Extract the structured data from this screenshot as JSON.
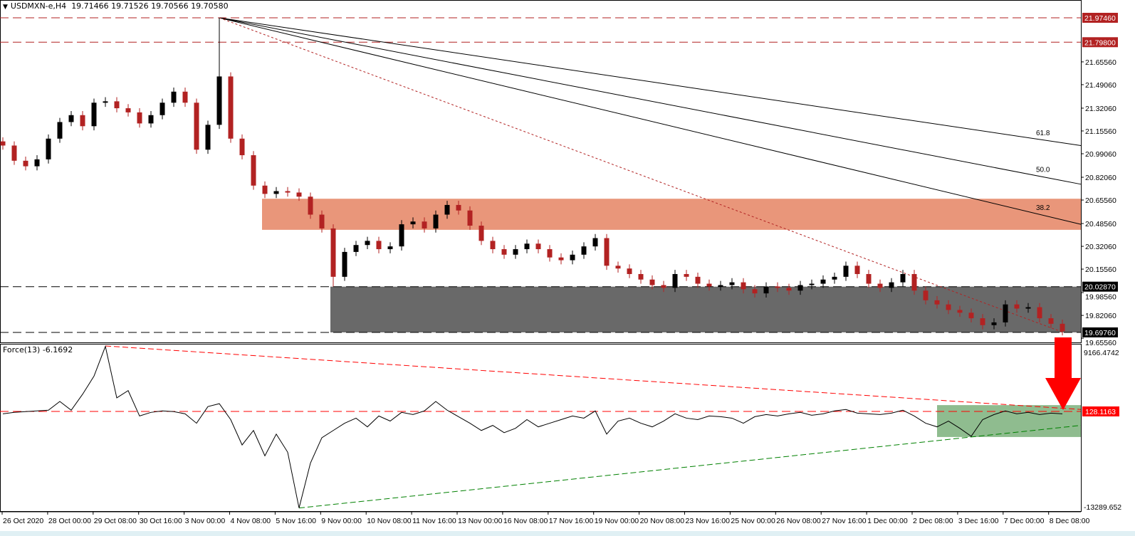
{
  "header": {
    "symbol": "USDMXN-e,H4",
    "ohlc": "19.71466 19.71526 19.70566 19.70580"
  },
  "indicator": {
    "title": "Force(13) -6.1692"
  },
  "colors": {
    "bull": "#000000",
    "bear": "#b22222",
    "resistance_zone": "#e9967a",
    "support_zone": "#696969",
    "indicator_zone": "#8fbc8f",
    "arrow": "#ff0000",
    "level_line": "#b22222"
  },
  "chart_data": [
    {
      "type": "candlestick",
      "symbol": "USDMXN-e",
      "timeframe": "H4",
      "ylim": [
        19.6556,
        22.0
      ],
      "y_ticks": [
        "21.65560",
        "21.49060",
        "21.32060",
        "21.15560",
        "20.99060",
        "20.82060",
        "20.65560",
        "20.48560",
        "20.32060",
        "20.15560",
        "19.98560",
        "19.82060",
        "19.65560"
      ],
      "x_ticks": [
        "26 Oct 2020",
        "28 Oct 00:00",
        "29 Oct 08:00",
        "30 Oct 16:00",
        "3 Nov 00:00",
        "4 Nov 08:00",
        "5 Nov 16:00",
        "9 Nov 00:00",
        "10 Nov 08:00",
        "11 Nov 16:00",
        "13 Nov 00:00",
        "16 Nov 08:00",
        "17 Nov 16:00",
        "19 Nov 00:00",
        "20 Nov 08:00",
        "23 Nov 16:00",
        "25 Nov 00:00",
        "26 Nov 08:00",
        "27 Nov 16:00",
        "1 Dec 00:00",
        "2 Dec 08:00",
        "3 Dec 16:00",
        "7 Dec 00:00",
        "8 Dec 08:00"
      ],
      "open_first": 21.08,
      "closes": [
        21.05,
        20.94,
        20.9,
        20.95,
        21.1,
        21.22,
        21.27,
        21.19,
        21.36,
        21.37,
        21.32,
        21.29,
        21.21,
        21.27,
        21.36,
        21.44,
        21.36,
        21.02,
        21.2,
        21.55,
        21.1,
        20.98,
        20.76,
        20.7,
        20.72,
        20.71,
        20.68,
        20.55,
        20.45,
        20.1,
        20.28,
        20.33,
        20.36,
        20.3,
        20.32,
        20.48,
        20.5,
        20.45,
        20.55,
        20.62,
        20.58,
        20.47,
        20.36,
        20.3,
        20.26,
        20.3,
        20.34,
        20.3,
        20.24,
        20.22,
        20.26,
        20.32,
        20.38,
        20.18,
        20.16,
        20.12,
        20.08,
        20.04,
        20.02,
        20.12,
        20.1,
        20.05,
        20.03,
        20.04,
        20.06,
        20.01,
        19.98,
        20.03,
        20.02,
        20.0,
        20.04,
        20.05,
        20.08,
        20.1,
        20.18,
        20.12,
        20.05,
        20.02,
        20.06,
        20.12,
        20.0,
        19.93,
        19.9,
        19.86,
        19.84,
        19.8,
        19.75,
        19.77,
        19.9,
        19.87,
        19.88,
        19.8,
        19.76,
        19.706
      ],
      "extremes": [
        {
          "index": 19,
          "high": 21.9746
        },
        {
          "index": 29,
          "low": 20.0287
        }
      ],
      "levels": [
        {
          "price": 21.9746,
          "label": "21.97460",
          "style": "red-dashed"
        },
        {
          "price": 21.798,
          "label": "21.79800",
          "style": "red-dashed"
        },
        {
          "price": 20.0287,
          "label": "20.02870",
          "style": "black-dashed"
        },
        {
          "price": 19.6976,
          "label": "19.69760",
          "style": "black-dashed"
        }
      ],
      "zones": [
        {
          "name": "resistance",
          "from": 20.44,
          "to": 20.665,
          "start_index": 23
        },
        {
          "name": "support",
          "from": 19.6976,
          "to": 20.0287,
          "start_index": 29
        }
      ],
      "fib_fan": {
        "origin_index": 19,
        "origin_price": 21.9746,
        "levels": [
          {
            "label": "38.2",
            "end_price": 20.48
          },
          {
            "label": "50.0",
            "end_price": 20.77
          },
          {
            "label": "61.8",
            "end_price": 21.05
          }
        ]
      },
      "trendline": {
        "from_index": 19,
        "from_price": 21.9746,
        "to_index": 93,
        "to_price": 19.7,
        "style": "red-dotted"
      }
    },
    {
      "type": "line",
      "name": "Force(13)",
      "ylim": [
        -13289.652,
        9166.4742
      ],
      "y_ticks": [
        "9166.4742",
        "-13289.652"
      ],
      "current_level": {
        "value": 128.1163,
        "label": "128.1163"
      },
      "values": [
        -200,
        0,
        100,
        200,
        300,
        1500,
        300,
        2500,
        5000,
        9100,
        2000,
        3000,
        -500,
        0,
        200,
        100,
        -200,
        -1500,
        800,
        1200,
        -1000,
        -4500,
        -2500,
        -6000,
        -3000,
        -5500,
        -13200,
        -7000,
        -3500,
        -2500,
        -1500,
        -800,
        -2000,
        -500,
        -1200,
        0,
        -300,
        200,
        1500,
        300,
        -600,
        -1500,
        -2500,
        -1800,
        -2800,
        -2200,
        -1000,
        -2000,
        -1500,
        -1000,
        -500,
        -800,
        200,
        -3000,
        -1200,
        -800,
        -1500,
        -2000,
        -1200,
        -200,
        -800,
        -1000,
        -500,
        -600,
        -800,
        -1500,
        -600,
        -300,
        -500,
        -200,
        0,
        -400,
        -200,
        200,
        400,
        -100,
        -200,
        -300,
        -100,
        300,
        -500,
        -1500,
        -2000,
        -1200,
        -2200,
        -3300,
        -1000,
        -300,
        200,
        -200,
        0,
        -300,
        -100,
        -200
      ],
      "trendlines": [
        {
          "style": "red-dashed",
          "from_index": 9,
          "from_value": 9166,
          "to_value": 400
        },
        {
          "style": "green-dashed",
          "from_index": 26,
          "from_value": -13200,
          "to_value": -1800
        }
      ],
      "zone": {
        "from": -3400,
        "to": 1000,
        "start_index": 82
      },
      "arrow": {
        "direction": "down"
      }
    }
  ]
}
